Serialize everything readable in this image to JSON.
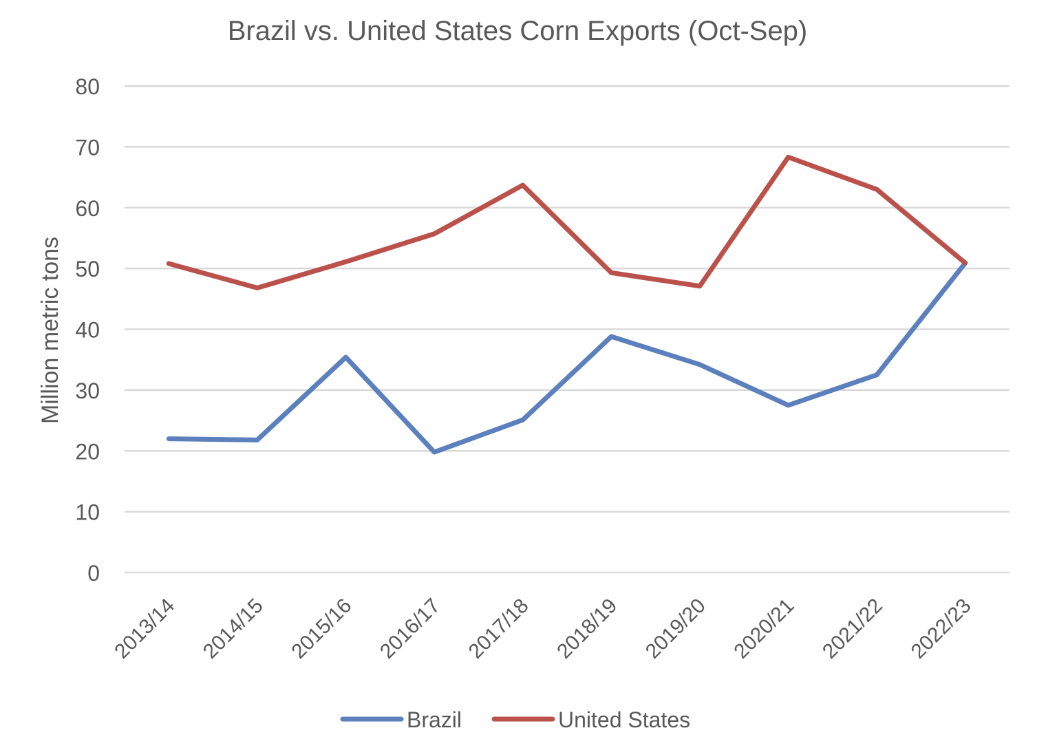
{
  "chart_data": {
    "type": "line",
    "title": "Brazil vs. United States Corn Exports (Oct-Sep)",
    "xlabel": "",
    "ylabel": "Million metric tons",
    "ylim": [
      0,
      80
    ],
    "yticks": [
      0,
      10,
      20,
      30,
      40,
      50,
      60,
      70,
      80
    ],
    "grid": true,
    "legend": "bottom",
    "categories": [
      "2013/14",
      "2014/15",
      "2015/16",
      "2016/17",
      "2017/18",
      "2018/19",
      "2019/20",
      "2020/21",
      "2021/22",
      "2022/23"
    ],
    "series": [
      {
        "name": "Brazil",
        "color": "#5b80bd",
        "values": [
          22.0,
          21.8,
          35.4,
          19.8,
          25.1,
          38.8,
          34.2,
          27.5,
          32.5,
          50.9
        ]
      },
      {
        "name": "United States",
        "color": "#bb514b",
        "values": [
          50.8,
          46.8,
          51.1,
          55.7,
          63.7,
          49.3,
          47.1,
          68.3,
          63.0,
          50.9
        ]
      }
    ]
  }
}
